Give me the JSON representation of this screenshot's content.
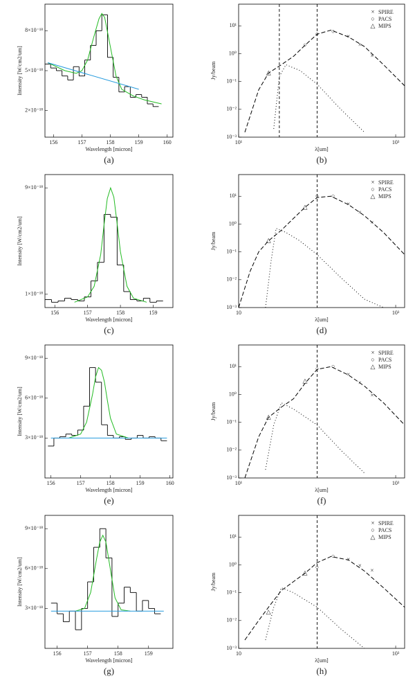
{
  "chart_data": [
    {
      "type": "line",
      "caption": "(a)",
      "xlabel": "Wavelength [micron]",
      "ylabel": "Intensity [W/cm2/um]",
      "xlim": [
        155.7,
        160.2
      ],
      "xticks": [
        156,
        157,
        158,
        159,
        160
      ],
      "ylim": [
        0,
        10
      ],
      "yticks": [
        {
          "value": 2,
          "label": "2×10⁻¹⁸"
        },
        {
          "value": 5,
          "label": "5×10⁻¹⁸"
        },
        {
          "value": 8,
          "label": "8×10⁻¹⁸"
        }
      ],
      "series": [
        {
          "style": "step",
          "color": "#000000",
          "x": [
            155.8,
            156.0,
            156.2,
            156.4,
            156.6,
            156.8,
            157.0,
            157.2,
            157.4,
            157.6,
            157.8,
            158.0,
            158.2,
            158.4,
            158.6,
            158.8,
            159.0,
            159.2,
            159.4,
            159.6
          ],
          "values": [
            5.5,
            5.2,
            5.0,
            4.6,
            4.3,
            5.3,
            4.6,
            5.8,
            6.9,
            8.0,
            9.2,
            6.0,
            4.5,
            3.4,
            3.8,
            3.0,
            3.2,
            3.0,
            2.5,
            2.3
          ]
        },
        {
          "style": "line",
          "color": "#22bb22",
          "x": [
            155.8,
            156.4,
            156.8,
            157.0,
            157.2,
            157.4,
            157.6,
            157.7,
            157.8,
            158.0,
            158.2,
            158.4,
            158.8,
            159.2,
            159.8
          ],
          "values": [
            5.6,
            5.0,
            4.8,
            5.0,
            5.8,
            7.4,
            8.9,
            9.3,
            9.0,
            6.8,
            4.6,
            3.6,
            3.1,
            2.8,
            2.5
          ]
        },
        {
          "style": "line",
          "color": "#2299dd",
          "x": [
            155.8,
            159.0
          ],
          "values": [
            5.6,
            3.6
          ]
        }
      ]
    },
    {
      "type": "line",
      "caption": "(b)",
      "xlabel": "λ[um]",
      "ylabel": "Jy/beam",
      "xlog": true,
      "ylog": true,
      "xlim": [
        10,
        1300
      ],
      "xticks": [
        {
          "value": 10,
          "label": "10¹"
        },
        {
          "value": 1000,
          "label": "10³"
        }
      ],
      "ylim": [
        0.001,
        60
      ],
      "yticks": [
        {
          "value": 0.001,
          "label": "10⁻³"
        },
        {
          "value": 0.01,
          "label": "10⁻²"
        },
        {
          "value": 0.1,
          "label": "10⁻¹"
        },
        {
          "value": 1,
          "label": "10⁰"
        },
        {
          "value": 10,
          "label": "10¹"
        }
      ],
      "vlines": [
        33,
        100
      ],
      "series": [
        {
          "name": "SPIRE",
          "marker": "×",
          "color": "#000000",
          "x": [
            250,
            350,
            500
          ],
          "values": [
            4,
            2,
            0.8
          ]
        },
        {
          "name": "PACS",
          "marker": "○",
          "color": "#dd2222",
          "x": [
            70,
            100,
            160
          ],
          "values": [
            2,
            5,
            6
          ]
        },
        {
          "name": "MIPS",
          "marker": "△",
          "color": "#22aa22",
          "x": [
            24
          ],
          "values": [
            0.2
          ]
        },
        {
          "style": "dash",
          "color": "#000000",
          "x": [
            12,
            18,
            24,
            35,
            50,
            70,
            100,
            150,
            250,
            400,
            700,
            1300
          ],
          "values": [
            0.0015,
            0.05,
            0.2,
            0.4,
            0.8,
            2,
            5,
            7,
            4,
            1.8,
            0.4,
            0.07
          ]
        },
        {
          "style": "dot",
          "color": "#000000",
          "x": [
            28,
            33,
            40,
            60,
            100,
            200,
            400
          ],
          "values": [
            0.002,
            0.15,
            0.4,
            0.25,
            0.08,
            0.01,
            0.0015
          ]
        }
      ]
    },
    {
      "type": "line",
      "caption": "(c)",
      "xlabel": "Wavelength [micron]",
      "ylabel": "Intensity [W/cm2/um]",
      "xlim": [
        155.7,
        159.6
      ],
      "xticks": [
        156,
        157,
        158,
        159
      ],
      "ylim": [
        0,
        10
      ],
      "yticks": [
        {
          "value": 1,
          "label": "1×10⁻¹⁸"
        },
        {
          "value": 9,
          "label": "9×10⁻¹⁸"
        }
      ],
      "series": [
        {
          "style": "step",
          "color": "#000000",
          "x": [
            155.8,
            156.0,
            156.2,
            156.4,
            156.6,
            156.8,
            157.0,
            157.2,
            157.4,
            157.6,
            157.8,
            158.0,
            158.2,
            158.4,
            158.6,
            158.8,
            159.0,
            159.2
          ],
          "values": [
            0.6,
            0.4,
            0.5,
            0.7,
            0.6,
            0.5,
            0.8,
            2.0,
            3.4,
            7.0,
            6.8,
            3.2,
            1.2,
            0.6,
            0.5,
            0.7,
            0.4,
            0.5
          ]
        },
        {
          "style": "line",
          "color": "#22bb22",
          "x": [
            156.6,
            157.0,
            157.2,
            157.4,
            157.5,
            157.6,
            157.7,
            157.8,
            157.9,
            158.0,
            158.2,
            158.4,
            158.8
          ],
          "values": [
            0.4,
            0.8,
            1.6,
            4.0,
            6.2,
            8.2,
            9.0,
            8.3,
            6.3,
            4.2,
            1.6,
            0.7,
            0.4
          ]
        }
      ]
    },
    {
      "type": "line",
      "caption": "(d)",
      "xlabel": "λ[um]",
      "ylabel": "Jy/beam",
      "xlog": true,
      "ylog": true,
      "xlim": [
        10,
        1300
      ],
      "xticks": [
        {
          "value": 10,
          "label": "10"
        },
        {
          "value": 1000,
          "label": "10³"
        }
      ],
      "ylim": [
        0.001,
        60
      ],
      "yticks": [
        {
          "value": 0.001,
          "label": "10⁻³"
        },
        {
          "value": 0.01,
          "label": "10⁻²"
        },
        {
          "value": 0.1,
          "label": "10⁻¹"
        },
        {
          "value": 1,
          "label": "10⁰"
        },
        {
          "value": 10,
          "label": "10¹"
        }
      ],
      "vlines": [
        100
      ],
      "series": [
        {
          "name": "SPIRE",
          "marker": "×",
          "color": "#000000",
          "x": [
            250,
            350,
            500
          ],
          "values": [
            5,
            2.5,
            1.1
          ]
        },
        {
          "name": "PACS",
          "marker": "○",
          "color": "#dd2222",
          "x": [
            100,
            160
          ],
          "values": [
            10,
            10
          ]
        },
        {
          "name": "MIPS",
          "marker": "△",
          "color": "#22aa22",
          "x": [
            24,
            70
          ],
          "values": [
            0.25,
            4
          ]
        },
        {
          "style": "dash",
          "color": "#000000",
          "x": [
            10,
            14,
            18,
            24,
            35,
            50,
            70,
            100,
            150,
            250,
            400,
            700,
            1300
          ],
          "values": [
            0.001,
            0.02,
            0.1,
            0.25,
            0.6,
            1.6,
            4,
            9,
            10,
            5,
            2,
            0.5,
            0.08
          ]
        },
        {
          "style": "dot",
          "color": "#000000",
          "x": [
            22,
            26,
            30,
            40,
            60,
            100,
            200,
            400,
            700
          ],
          "values": [
            0.001,
            0.05,
            0.7,
            0.5,
            0.25,
            0.08,
            0.012,
            0.002,
            0.001
          ]
        }
      ]
    },
    {
      "type": "line",
      "caption": "(e)",
      "xlabel": "Wavelength [micron]",
      "ylabel": "Intensity [W/cm2/um]",
      "xlim": [
        155.8,
        160.1
      ],
      "xticks": [
        156,
        157,
        158,
        159,
        160
      ],
      "ylim": [
        0,
        10
      ],
      "yticks": [
        {
          "value": 3,
          "label": "3×10⁻¹⁸"
        },
        {
          "value": 6,
          "label": "6×10⁻¹⁸"
        },
        {
          "value": 9,
          "label": "9×10⁻¹⁸"
        }
      ],
      "series": [
        {
          "style": "step",
          "color": "#000000",
          "x": [
            156.0,
            156.2,
            156.4,
            156.6,
            156.8,
            157.0,
            157.2,
            157.4,
            157.6,
            157.8,
            158.0,
            158.2,
            158.4,
            158.6,
            158.8,
            159.0,
            159.2,
            159.4,
            159.6,
            159.8
          ],
          "values": [
            2.4,
            3.0,
            3.1,
            3.3,
            3.2,
            3.6,
            5.4,
            8.3,
            7.2,
            4.0,
            3.2,
            3.0,
            3.1,
            2.9,
            3.0,
            3.2,
            3.0,
            3.1,
            3.0,
            2.8
          ]
        },
        {
          "style": "line",
          "color": "#22bb22",
          "x": [
            156.6,
            157.0,
            157.2,
            157.4,
            157.5,
            157.6,
            157.7,
            157.8,
            157.9,
            158.0,
            158.2,
            158.6
          ],
          "values": [
            3.0,
            3.3,
            4.2,
            6.3,
            7.6,
            8.3,
            8.1,
            7.2,
            5.8,
            4.5,
            3.3,
            3.0
          ]
        },
        {
          "style": "line",
          "color": "#2299dd",
          "x": [
            156.0,
            159.9
          ],
          "values": [
            3.0,
            3.0
          ]
        }
      ]
    },
    {
      "type": "line",
      "caption": "(f)",
      "xlabel": "λ[um]",
      "ylabel": "Jy/beam",
      "xlog": true,
      "ylog": true,
      "xlim": [
        10,
        1300
      ],
      "xticks": [
        {
          "value": 10,
          "label": "10¹"
        },
        {
          "value": 1000,
          "label": "10³"
        }
      ],
      "ylim": [
        0.001,
        60
      ],
      "yticks": [
        {
          "value": 0.001,
          "label": "10⁻³"
        },
        {
          "value": 0.01,
          "label": "10⁻²"
        },
        {
          "value": 0.1,
          "label": "10⁻¹"
        },
        {
          "value": 1,
          "label": "10⁰"
        },
        {
          "value": 10,
          "label": "10¹"
        }
      ],
      "vlines": [
        100
      ],
      "series": [
        {
          "name": "SPIRE",
          "marker": "×",
          "color": "#000000",
          "x": [
            250,
            350,
            500
          ],
          "values": [
            5,
            2.5,
            0.9
          ]
        },
        {
          "name": "PACS",
          "marker": "○",
          "color": "#dd2222",
          "x": [
            100,
            160
          ],
          "values": [
            8,
            10
          ]
        },
        {
          "name": "MIPS",
          "marker": "△",
          "color": "#22aa22",
          "x": [
            24,
            70
          ],
          "values": [
            0.15,
            3
          ]
        },
        {
          "style": "dash",
          "color": "#000000",
          "x": [
            12,
            18,
            24,
            35,
            50,
            70,
            100,
            150,
            250,
            400,
            700,
            1300
          ],
          "values": [
            0.001,
            0.03,
            0.15,
            0.35,
            0.7,
            2.5,
            8,
            10,
            5,
            2,
            0.5,
            0.08
          ]
        },
        {
          "style": "dot",
          "color": "#000000",
          "x": [
            22,
            28,
            35,
            50,
            100,
            200,
            400
          ],
          "values": [
            0.002,
            0.08,
            0.5,
            0.3,
            0.08,
            0.01,
            0.0015
          ]
        }
      ]
    },
    {
      "type": "line",
      "caption": "(g)",
      "xlabel": "Wavelength [micron]",
      "ylabel": "Intensity [W/cm2/um]",
      "xlim": [
        155.6,
        159.8
      ],
      "xticks": [
        156,
        157,
        158,
        159
      ],
      "ylim": [
        0,
        10
      ],
      "yticks": [
        {
          "value": 3,
          "label": "3×10⁻¹⁸"
        },
        {
          "value": 6,
          "label": "6×10⁻¹⁸"
        },
        {
          "value": 9,
          "label": "9×10⁻¹⁸"
        }
      ],
      "series": [
        {
          "style": "step",
          "color": "#000000",
          "x": [
            155.9,
            156.1,
            156.3,
            156.5,
            156.7,
            156.9,
            157.1,
            157.3,
            157.5,
            157.7,
            157.9,
            158.1,
            158.3,
            158.5,
            158.7,
            158.9,
            159.1,
            159.3
          ],
          "values": [
            3.4,
            2.6,
            2.0,
            2.8,
            1.4,
            3.0,
            5.0,
            7.6,
            9.0,
            6.8,
            2.4,
            3.4,
            4.6,
            4.2,
            2.8,
            3.6,
            3.0,
            2.6
          ]
        },
        {
          "style": "line",
          "color": "#22bb22",
          "x": [
            156.6,
            156.9,
            157.1,
            157.3,
            157.4,
            157.5,
            157.6,
            157.7,
            157.9,
            158.1,
            158.4
          ],
          "values": [
            2.8,
            3.0,
            4.2,
            6.8,
            8.0,
            8.5,
            8.0,
            6.6,
            3.8,
            2.9,
            2.8
          ]
        },
        {
          "style": "line",
          "color": "#2299dd",
          "x": [
            155.8,
            159.5
          ],
          "values": [
            2.8,
            2.8
          ]
        }
      ]
    },
    {
      "type": "line",
      "caption": "(h)",
      "xlabel": "λ[um]",
      "ylabel": "Jy/beam",
      "xlog": true,
      "ylog": true,
      "xlim": [
        10,
        1300
      ],
      "xticks": [
        {
          "value": 10,
          "label": "10"
        },
        {
          "value": 1000,
          "label": "10³"
        }
      ],
      "ylim": [
        0.001,
        60
      ],
      "yticks": [
        {
          "value": 0.001,
          "label": "10⁻³"
        },
        {
          "value": 0.01,
          "label": "10⁻²"
        },
        {
          "value": 0.1,
          "label": "10⁻¹"
        },
        {
          "value": 1,
          "label": "10⁰"
        },
        {
          "value": 10,
          "label": "10¹"
        }
      ],
      "vlines": [
        100
      ],
      "series": [
        {
          "name": "SPIRE",
          "marker": "×",
          "color": "#000000",
          "x": [
            250,
            350,
            500
          ],
          "values": [
            1.5,
            0.9,
            0.6
          ]
        },
        {
          "name": "PACS",
          "marker": "○",
          "color": "#dd2222",
          "x": [
            100,
            160
          ],
          "values": [
            0.8,
            2
          ]
        },
        {
          "name": "MIPS",
          "marker": "△",
          "color": "#22aa22",
          "x": [
            24,
            70
          ],
          "values": [
            0.02,
            0.5
          ]
        },
        {
          "style": "dash",
          "color": "#000000",
          "x": [
            12,
            18,
            24,
            35,
            50,
            70,
            100,
            150,
            250,
            400,
            700,
            1300
          ],
          "values": [
            0.002,
            0.01,
            0.03,
            0.12,
            0.25,
            0.5,
            1.2,
            2,
            1.5,
            0.6,
            0.15,
            0.03
          ]
        },
        {
          "style": "dot",
          "color": "#000000",
          "x": [
            22,
            28,
            35,
            50,
            100,
            200,
            400
          ],
          "values": [
            0.002,
            0.03,
            0.15,
            0.1,
            0.03,
            0.005,
            0.001
          ]
        }
      ]
    }
  ]
}
